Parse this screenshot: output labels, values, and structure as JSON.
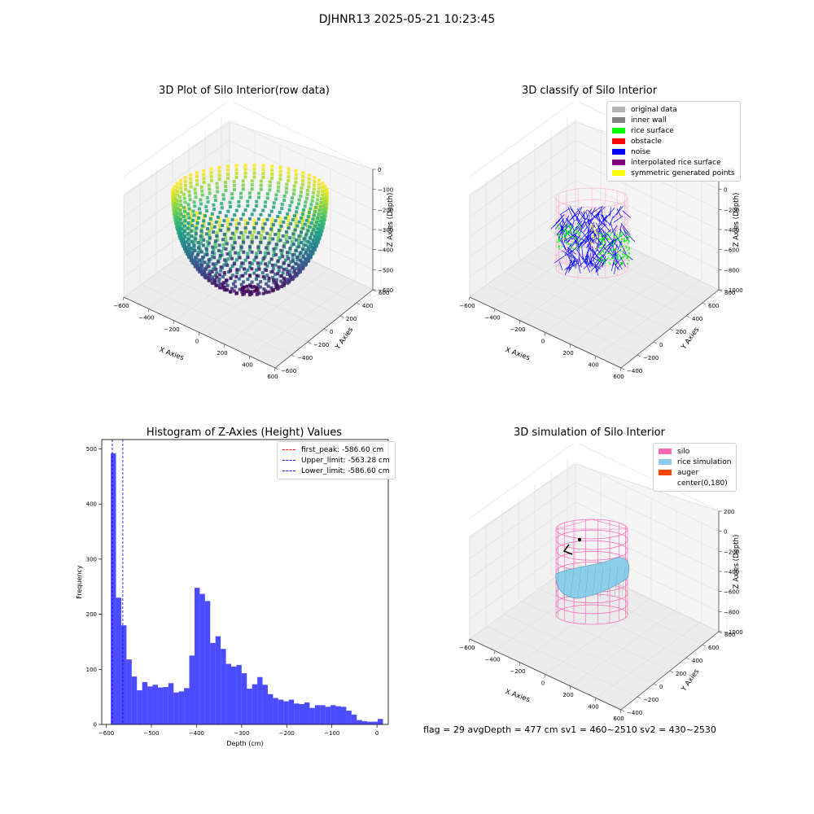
{
  "suptitle": "DJHNR13 2025-05-21 10:23:45",
  "footer": "flag = 29  avgDepth = 477 cm  sv1 = 460~2510  sv2 = 430~2530",
  "chart_data": [
    {
      "type": "scatter",
      "title": "3D Plot of Silo Interior(row data)",
      "xlabel": "X Axies",
      "ylabel": "Y Axies",
      "zlabel": "Z Axies (Depth)",
      "x_ticks": [
        "−600",
        "−400",
        "−200",
        "0",
        "200",
        "400",
        "600"
      ],
      "y_ticks": [
        "−600",
        "−400",
        "−200",
        "0",
        "200",
        "400",
        "600"
      ],
      "z_ticks": [
        "0",
        "−100",
        "−200",
        "−300",
        "−400",
        "−500",
        "−600"
      ],
      "xlim": [
        -600,
        600
      ],
      "ylim": [
        -600,
        600
      ],
      "zlim": [
        -650,
        0
      ],
      "colormap": "viridis",
      "surface": "bowl"
    },
    {
      "type": "scatter",
      "title": "3D classify of Silo Interior",
      "xlabel": "X Axies",
      "ylabel": "Y Axies",
      "zlabel": "Z Axies (Depth)",
      "x_ticks": [
        "−600",
        "−400",
        "−200",
        "0",
        "200",
        "400",
        "600"
      ],
      "y_ticks": [
        "−400",
        "−200",
        "0",
        "200",
        "400",
        "600",
        "800"
      ],
      "z_ticks": [
        "200",
        "0",
        "−200",
        "−400",
        "−600",
        "−800",
        "−1000"
      ],
      "legend": [
        {
          "label": "original data",
          "color": "#b3b3b3"
        },
        {
          "label": "inner wall",
          "color": "#808080"
        },
        {
          "label": "rice surface",
          "color": "#00ff00"
        },
        {
          "label": "obstacle",
          "color": "#ff0000"
        },
        {
          "label": "noise",
          "color": "#0000ff"
        },
        {
          "label": "interpolated rice surface",
          "color": "#800080"
        },
        {
          "label": "symmetric generated points",
          "color": "#ffff00"
        }
      ]
    },
    {
      "type": "bar",
      "title": "Histogram of Z-Axies (Height) Values",
      "xlabel": "Depth (cm)",
      "ylabel": "Frequency",
      "xlim": [
        -610,
        25
      ],
      "ylim": [
        0,
        517
      ],
      "x_ticks": [
        -600,
        -500,
        -400,
        -300,
        -200,
        -100,
        0
      ],
      "y_ticks": [
        0,
        100,
        200,
        300,
        400,
        500
      ],
      "bin_start": -590,
      "bin_width": 11.6,
      "values": [
        492,
        230,
        180,
        118,
        87,
        62,
        77,
        69,
        72,
        67,
        68,
        75,
        58,
        60,
        66,
        125,
        248,
        237,
        224,
        148,
        160,
        137,
        110,
        105,
        108,
        93,
        65,
        73,
        86,
        72,
        55,
        48,
        45,
        42,
        45,
        38,
        37,
        40,
        30,
        35,
        35,
        32,
        35,
        33,
        32,
        25,
        18,
        8,
        6,
        5,
        5,
        10
      ],
      "bar_color": "#0000ff",
      "lines": [
        {
          "label": "first_peak: -586.60 cm",
          "x": -586.6,
          "color": "#ff0000"
        },
        {
          "label": "Upper_limit: -563.28 cm",
          "x": -563.28,
          "color": "#0000ff"
        },
        {
          "label": "Lower_limit: -586.60 cm",
          "x": -586.6,
          "color": "#0000ff"
        }
      ]
    },
    {
      "type": "scatter",
      "title": "3D simulation of Silo Interior",
      "xlabel": "X Axies",
      "ylabel": "Y Axies",
      "zlabel": "Z Axies (Depth)",
      "x_ticks": [
        "−600",
        "−400",
        "−200",
        "0",
        "200",
        "400",
        "600"
      ],
      "y_ticks": [
        "−400",
        "−200",
        "0",
        "200",
        "400",
        "600",
        "800"
      ],
      "z_ticks": [
        "200",
        "0",
        "−200",
        "−400",
        "−600",
        "−800",
        "−1000"
      ],
      "legend": [
        {
          "label": "silo",
          "color": "#ff69b4"
        },
        {
          "label": "rice simulation",
          "color": "#87ceeb"
        },
        {
          "label": "auger",
          "color": "#ff4500"
        },
        {
          "label": "center(0,180)",
          "color": ""
        }
      ]
    }
  ]
}
